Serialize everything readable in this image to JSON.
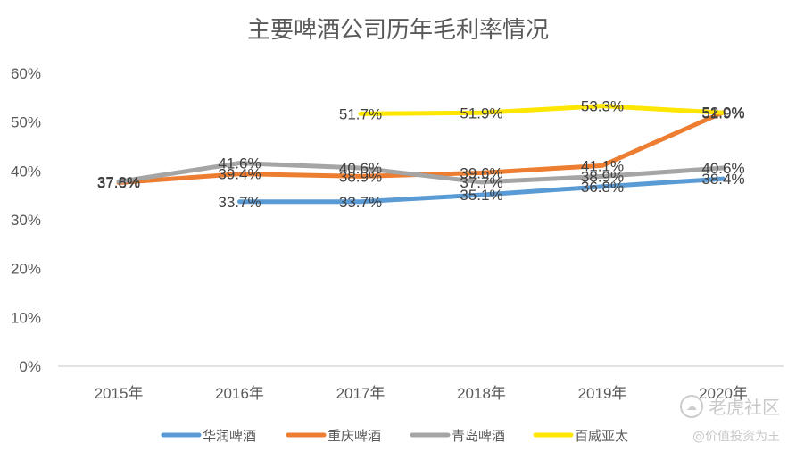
{
  "chart_data": {
    "type": "line",
    "title": "主要啤酒公司历年毛利率情况",
    "x": [
      "2015年",
      "2016年",
      "2017年",
      "2018年",
      "2019年",
      "2020年"
    ],
    "ylim": [
      0,
      60
    ],
    "yticks": [
      "0%",
      "10%",
      "20%",
      "30%",
      "40%",
      "50%",
      "60%"
    ],
    "grid": false,
    "legend_position": "bottom",
    "series": [
      {
        "name": "华润啤酒",
        "color": "#5b9bd5",
        "values": [
          null,
          33.7,
          33.7,
          35.1,
          36.8,
          38.4
        ],
        "labels": [
          "",
          "33.7%",
          "33.7%",
          "35.1%",
          "36.8%",
          "38.4%"
        ]
      },
      {
        "name": "重庆啤酒",
        "color": "#ed7d31",
        "values": [
          37.6,
          39.4,
          38.9,
          39.6,
          41.1,
          52.0
        ],
        "labels": [
          "37.6%",
          "39.4%",
          "38.9%",
          "39.6%",
          "41.1%",
          "52.0%"
        ]
      },
      {
        "name": "青岛啤酒",
        "color": "#a5a5a5",
        "values": [
          37.8,
          41.6,
          40.6,
          37.7,
          38.9,
          40.6
        ],
        "labels": [
          "37.8%",
          "41.6%",
          "40.6%",
          "37.7%",
          "38.9%",
          "40.6%"
        ]
      },
      {
        "name": "百威亚太",
        "color": "#ffe600",
        "values": [
          null,
          null,
          51.7,
          51.9,
          53.3,
          51.9
        ],
        "labels": [
          "",
          "",
          "51.7%",
          "51.9%",
          "53.3%",
          "51.9%"
        ]
      }
    ]
  },
  "watermark": {
    "brand": "老虎社区",
    "user": "@价值投资为王"
  }
}
